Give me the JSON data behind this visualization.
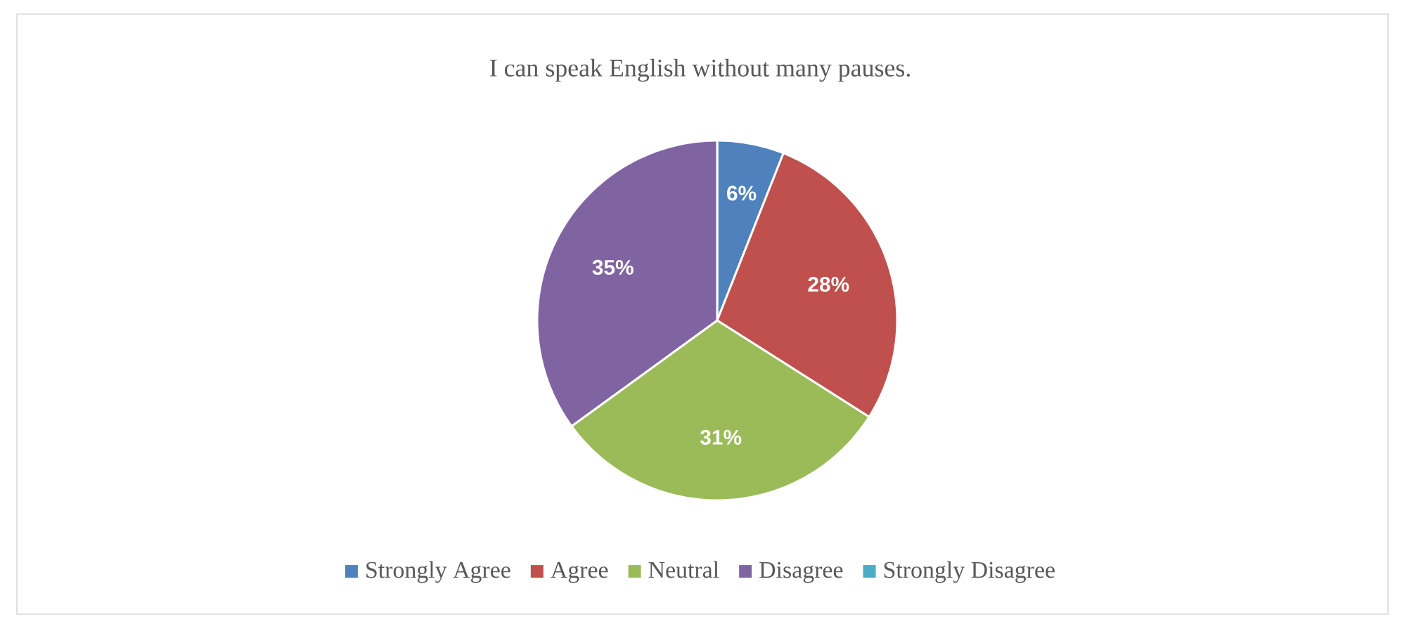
{
  "chart_data": {
    "type": "pie",
    "title": "I can speak English without many pauses.",
    "categories": [
      "Strongly Agree",
      "Agree",
      "Neutral",
      "Disagree",
      "Strongly Disagree"
    ],
    "values": [
      6,
      28,
      31,
      35,
      0
    ],
    "value_labels": [
      "6%",
      "28%",
      "31%",
      "35%",
      null
    ],
    "colors": [
      "#4f81bd",
      "#c0504d",
      "#9bbb59",
      "#8064a2",
      "#4bacc6"
    ],
    "legend": "bottom"
  }
}
